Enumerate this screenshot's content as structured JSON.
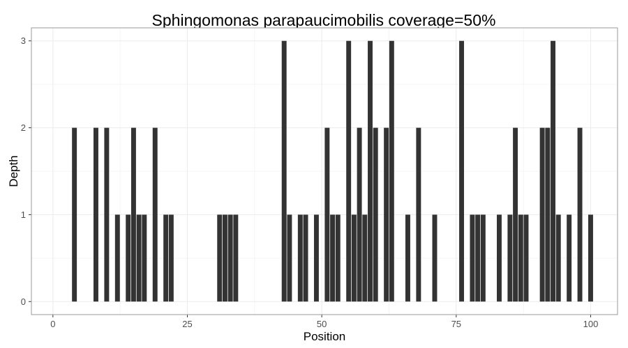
{
  "chart_data": {
    "type": "bar",
    "title": "Sphingomonas parapaucimobilis coverage=50%",
    "xlabel": "Position",
    "ylabel": "Depth",
    "xlim": [
      -4,
      105
    ],
    "ylim": [
      -0.15,
      3.15
    ],
    "x_ticks": [
      0,
      25,
      50,
      75,
      100
    ],
    "y_ticks": [
      0,
      1,
      2,
      3
    ],
    "grid": true,
    "legend": "none",
    "bar_color": "#333333",
    "panel_border_color": "#999999",
    "grid_color": "#ebebeb",
    "x": [
      4,
      8,
      10,
      12,
      14,
      15,
      16,
      17,
      19,
      21,
      22,
      31,
      32,
      33,
      34,
      43,
      44,
      46,
      47,
      49,
      51,
      52,
      53,
      55,
      56,
      57,
      58,
      59,
      60,
      62,
      63,
      66,
      68,
      71,
      76,
      78,
      79,
      80,
      83,
      85,
      86,
      87,
      88,
      91,
      92,
      93,
      94,
      96,
      98,
      100
    ],
    "values": [
      2,
      2,
      2,
      1,
      1,
      2,
      1,
      1,
      2,
      1,
      1,
      1,
      1,
      1,
      1,
      3,
      1,
      1,
      1,
      1,
      2,
      1,
      1,
      3,
      1,
      2,
      1,
      3,
      2,
      2,
      3,
      1,
      2,
      1,
      3,
      1,
      1,
      1,
      1,
      1,
      2,
      1,
      1,
      2,
      2,
      3,
      1,
      1,
      2,
      1
    ]
  }
}
